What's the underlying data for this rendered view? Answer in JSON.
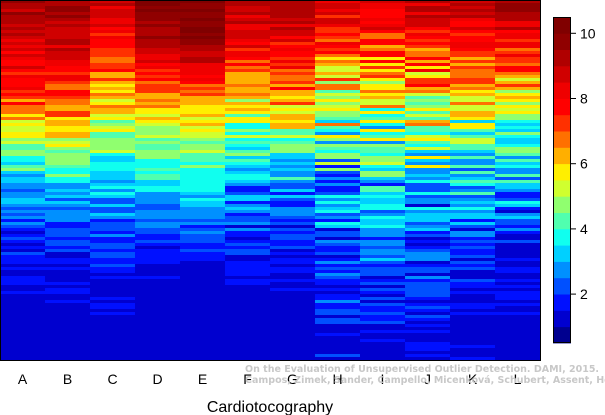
{
  "chart_data": {
    "type": "heatmap",
    "xlabel": "Cardiotocography",
    "categories": [
      "A",
      "B",
      "C",
      "D",
      "E",
      "F",
      "G",
      "H",
      "I",
      "J",
      "K",
      "L"
    ],
    "colorbar": {
      "ticks": [
        2,
        4,
        6,
        8,
        10
      ],
      "range": [
        0.5,
        10.5
      ],
      "levels": 20,
      "colors": [
        "#00008F",
        "#0000CF",
        "#0010FF",
        "#0050FF",
        "#0090FF",
        "#00D0FF",
        "#10FFEF",
        "#50FFAF",
        "#90FF6F",
        "#D0FF2F",
        "#FFEF00",
        "#FFAF00",
        "#FF7000",
        "#FF3000",
        "#FF0000",
        "#EF0000",
        "#D00000",
        "#B00000",
        "#900000",
        "#800000"
      ]
    },
    "rows": 120,
    "column_profiles": [
      {
        "category": "A",
        "values": [
          9.5,
          8.8,
          8.0,
          7.0,
          5.5,
          4.0,
          2.8,
          1.9,
          1.5,
          1.3,
          1.0,
          1.0
        ],
        "noise": 0.9
      },
      {
        "category": "B",
        "values": [
          9.6,
          9.0,
          8.2,
          7.2,
          5.8,
          4.2,
          2.9,
          2.0,
          1.5,
          1.3,
          1.0,
          1.0
        ],
        "noise": 0.9
      },
      {
        "category": "C",
        "values": [
          9.0,
          8.0,
          7.0,
          6.0,
          5.0,
          4.0,
          3.0,
          2.4,
          1.8,
          1.5,
          1.2,
          1.0
        ],
        "noise": 1.0
      },
      {
        "category": "D",
        "values": [
          10.0,
          9.3,
          8.0,
          6.5,
          5.2,
          4.0,
          3.0,
          2.2,
          1.6,
          1.3,
          1.0,
          1.0
        ],
        "noise": 0.7
      },
      {
        "category": "E",
        "values": [
          10.0,
          10.0,
          8.5,
          6.5,
          5.3,
          4.2,
          3.2,
          2.3,
          1.6,
          1.3,
          1.0,
          1.0
        ],
        "noise": 0.6
      },
      {
        "category": "F",
        "values": [
          9.3,
          8.5,
          7.2,
          6.0,
          4.5,
          3.3,
          2.5,
          2.0,
          1.6,
          1.2,
          1.0,
          1.0
        ],
        "noise": 1.1
      },
      {
        "category": "G",
        "values": [
          9.5,
          8.5,
          7.5,
          6.5,
          5.0,
          3.5,
          2.6,
          2.0,
          1.6,
          1.3,
          1.0,
          1.0
        ],
        "noise": 1.1
      },
      {
        "category": "H",
        "values": [
          8.5,
          7.5,
          6.5,
          5.5,
          4.5,
          3.5,
          2.8,
          2.5,
          2.2,
          2.0,
          1.8,
          1.5
        ],
        "noise": 1.9
      },
      {
        "category": "I",
        "values": [
          8.5,
          7.5,
          6.5,
          5.5,
          4.5,
          3.8,
          3.0,
          2.6,
          2.2,
          1.8,
          1.5,
          1.2
        ],
        "noise": 1.7
      },
      {
        "category": "J",
        "values": [
          9.0,
          8.0,
          7.0,
          6.0,
          4.8,
          3.8,
          3.0,
          2.5,
          2.0,
          1.8,
          1.5,
          1.2
        ],
        "noise": 1.9
      },
      {
        "category": "K",
        "values": [
          9.2,
          8.0,
          6.8,
          5.5,
          4.5,
          3.5,
          2.8,
          2.3,
          1.8,
          1.5,
          1.2,
          1.0
        ],
        "noise": 1.5
      },
      {
        "category": "L",
        "values": [
          9.5,
          8.5,
          7.0,
          5.5,
          4.5,
          3.5,
          2.6,
          2.0,
          1.6,
          1.3,
          1.1,
          1.0
        ],
        "noise": 1.3
      }
    ]
  },
  "watermark": {
    "line1": "On the Evaluation of Unsupervised Outlier Detection. DAMI, 2015.",
    "line2": "Campos, Zimek, Sander, Campello, Micenková, Schubert, Assent, Houle"
  }
}
